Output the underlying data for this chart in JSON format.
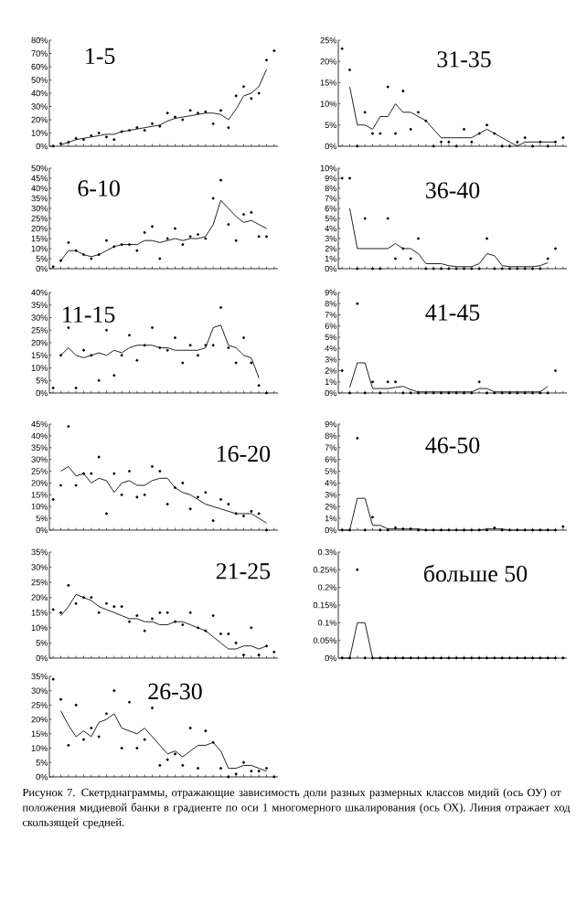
{
  "chart_data": [
    {
      "type": "scatter",
      "title": "1-5",
      "tick_labels": "y",
      "categories": [
        null,
        null,
        null,
        null,
        null,
        null,
        null,
        null,
        null,
        null,
        null,
        null,
        null,
        null,
        null,
        null,
        null,
        null,
        null,
        null,
        null,
        null,
        null,
        null,
        null,
        null,
        null,
        null,
        null,
        null
      ],
      "ylim": [
        0,
        80
      ],
      "yticks": [
        {
          "value": 0,
          "label": "0%"
        },
        {
          "value": 10,
          "label": "10%"
        },
        {
          "value": 20,
          "label": "20%"
        },
        {
          "value": 30,
          "label": "30%"
        },
        {
          "value": 40,
          "label": "40%"
        },
        {
          "value": 50,
          "label": "50%"
        },
        {
          "value": 60,
          "label": "60%"
        },
        {
          "value": 70,
          "label": "70%"
        },
        {
          "value": 80,
          "label": "80%"
        }
      ],
      "series": [
        {
          "type": "scatter",
          "marker": "circle",
          "color": "#000000",
          "values": [
            0,
            2,
            3,
            6,
            5,
            8,
            10,
            7,
            5,
            11,
            12,
            14,
            12,
            17,
            15,
            25,
            22,
            20,
            27,
            25,
            26,
            17,
            27,
            14,
            38,
            45,
            36,
            40,
            65,
            72
          ]
        },
        {
          "type": "line",
          "color": "#222222",
          "values": [
            null,
            1,
            3,
            5,
            6,
            7,
            8,
            9,
            9,
            11,
            12,
            13,
            14,
            15,
            16,
            19,
            21,
            22,
            23,
            24,
            25,
            25,
            24,
            20,
            28,
            38,
            40,
            45,
            58,
            null
          ]
        }
      ]
    },
    {
      "type": "scatter",
      "title": "6-10",
      "tick_labels": "y",
      "categories": [
        null,
        null,
        null,
        null,
        null,
        null,
        null,
        null,
        null,
        null,
        null,
        null,
        null,
        null,
        null,
        null,
        null,
        null,
        null,
        null,
        null,
        null,
        null,
        null,
        null,
        null,
        null,
        null,
        null,
        null
      ],
      "ylim": [
        0,
        50
      ],
      "yticks": [
        {
          "value": 0,
          "label": "0%"
        },
        {
          "value": 5,
          "label": "5%"
        },
        {
          "value": 10,
          "label": "10%"
        },
        {
          "value": 15,
          "label": "15%"
        },
        {
          "value": 20,
          "label": "20%"
        },
        {
          "value": 25,
          "label": "25%"
        },
        {
          "value": 30,
          "label": "30%"
        },
        {
          "value": 35,
          "label": "35%"
        },
        {
          "value": 40,
          "label": "40%"
        },
        {
          "value": 45,
          "label": "45%"
        },
        {
          "value": 50,
          "label": "50%"
        }
      ],
      "series": [
        {
          "type": "scatter",
          "marker": "circle",
          "color": "#000000",
          "values": [
            1,
            4,
            13,
            9,
            7,
            5,
            7,
            14,
            11,
            12,
            12,
            9,
            18,
            21,
            5,
            15,
            20,
            12,
            16,
            17,
            15,
            35,
            44,
            22,
            14,
            27,
            28,
            16,
            16,
            null
          ]
        },
        {
          "type": "line",
          "color": "#222222",
          "values": [
            null,
            4,
            9,
            9,
            7,
            6,
            7,
            9,
            11,
            12,
            12,
            12,
            14,
            14,
            13,
            14,
            15,
            14,
            15,
            15,
            16,
            22,
            34,
            30,
            26,
            23,
            24,
            22,
            20,
            null
          ]
        }
      ]
    },
    {
      "type": "scatter",
      "title": "11-15",
      "tick_labels": "y",
      "categories": [
        null,
        null,
        null,
        null,
        null,
        null,
        null,
        null,
        null,
        null,
        null,
        null,
        null,
        null,
        null,
        null,
        null,
        null,
        null,
        null,
        null,
        null,
        null,
        null,
        null,
        null,
        null,
        null,
        null,
        null
      ],
      "ylim": [
        0,
        40
      ],
      "yticks": [
        {
          "value": 0,
          "label": "0%"
        },
        {
          "value": 5,
          "label": "5%"
        },
        {
          "value": 10,
          "label": "10%"
        },
        {
          "value": 15,
          "label": "15%"
        },
        {
          "value": 20,
          "label": "20%"
        },
        {
          "value": 25,
          "label": "25%"
        },
        {
          "value": 30,
          "label": "30%"
        },
        {
          "value": 35,
          "label": "35%"
        },
        {
          "value": 40,
          "label": "40%"
        }
      ],
      "series": [
        {
          "type": "scatter",
          "marker": "circle",
          "color": "#000000",
          "values": [
            2,
            15,
            26,
            2,
            17,
            15,
            5,
            25,
            7,
            15,
            23,
            13,
            19,
            26,
            18,
            17,
            22,
            12,
            19,
            15,
            19,
            19,
            34,
            18,
            12,
            22,
            12,
            3,
            0,
            null
          ]
        },
        {
          "type": "line",
          "color": "#222222",
          "values": [
            null,
            15,
            18,
            15,
            14,
            15,
            16,
            15,
            17,
            16,
            18,
            19,
            19,
            19,
            18,
            18,
            17,
            17,
            17,
            17,
            18,
            26,
            27,
            19,
            18,
            15,
            14,
            6,
            null,
            null
          ]
        }
      ]
    },
    {
      "type": "scatter",
      "title": "16-20",
      "tick_labels": "y",
      "categories": [
        null,
        null,
        null,
        null,
        null,
        null,
        null,
        null,
        null,
        null,
        null,
        null,
        null,
        null,
        null,
        null,
        null,
        null,
        null,
        null,
        null,
        null,
        null,
        null,
        null,
        null,
        null,
        null,
        null,
        null
      ],
      "ylim": [
        0,
        45
      ],
      "yticks": [
        {
          "value": 0,
          "label": "0%"
        },
        {
          "value": 5,
          "label": "5%"
        },
        {
          "value": 10,
          "label": "10%"
        },
        {
          "value": 15,
          "label": "15%"
        },
        {
          "value": 20,
          "label": "20%"
        },
        {
          "value": 25,
          "label": "25%"
        },
        {
          "value": 30,
          "label": "30%"
        },
        {
          "value": 35,
          "label": "35%"
        },
        {
          "value": 40,
          "label": "40%"
        },
        {
          "value": 45,
          "label": "45%"
        }
      ],
      "series": [
        {
          "type": "scatter",
          "marker": "circle",
          "color": "#000000",
          "values": [
            13,
            19,
            44,
            19,
            24,
            24,
            31,
            7,
            24,
            15,
            25,
            14,
            15,
            27,
            25,
            11,
            18,
            20,
            9,
            14,
            16,
            4,
            13,
            11,
            7,
            6,
            8,
            7,
            0,
            null
          ]
        },
        {
          "type": "line",
          "color": "#222222",
          "values": [
            null,
            25,
            27,
            23,
            24,
            20,
            22,
            21,
            16,
            20,
            21,
            19,
            19,
            21,
            22,
            22,
            18,
            16,
            15,
            13,
            11,
            10,
            9,
            8,
            7,
            7,
            7,
            5,
            3,
            null
          ]
        }
      ]
    },
    {
      "type": "scatter",
      "title": "21-25",
      "tick_labels": "y",
      "categories": [
        null,
        null,
        null,
        null,
        null,
        null,
        null,
        null,
        null,
        null,
        null,
        null,
        null,
        null,
        null,
        null,
        null,
        null,
        null,
        null,
        null,
        null,
        null,
        null,
        null,
        null,
        null,
        null,
        null,
        null
      ],
      "ylim": [
        0,
        35
      ],
      "yticks": [
        {
          "value": 0,
          "label": "0%"
        },
        {
          "value": 5,
          "label": "5%"
        },
        {
          "value": 10,
          "label": "10%"
        },
        {
          "value": 15,
          "label": "15%"
        },
        {
          "value": 20,
          "label": "20%"
        },
        {
          "value": 25,
          "label": "25%"
        },
        {
          "value": 30,
          "label": "30%"
        },
        {
          "value": 35,
          "label": "35%"
        }
      ],
      "series": [
        {
          "type": "scatter",
          "marker": "circle",
          "color": "#000000",
          "values": [
            16,
            15,
            24,
            18,
            20,
            20,
            15,
            18,
            17,
            17,
            12,
            14,
            9,
            13,
            15,
            15,
            12,
            11,
            15,
            10,
            9,
            14,
            8,
            8,
            5,
            1,
            10,
            1,
            4,
            2
          ]
        },
        {
          "type": "line",
          "color": "#222222",
          "values": [
            null,
            14,
            17,
            21,
            20,
            19,
            17,
            16,
            15,
            14,
            13,
            13,
            12,
            12,
            11,
            11,
            12,
            12,
            11,
            10,
            9,
            7,
            5,
            3,
            3,
            4,
            4,
            3,
            4,
            null
          ]
        }
      ]
    },
    {
      "type": "scatter",
      "title": "26-30",
      "tick_labels": "y",
      "categories": [
        null,
        null,
        null,
        null,
        null,
        null,
        null,
        null,
        null,
        null,
        null,
        null,
        null,
        null,
        null,
        null,
        null,
        null,
        null,
        null,
        null,
        null,
        null,
        null,
        null,
        null,
        null,
        null,
        null,
        null
      ],
      "ylim": [
        0,
        35
      ],
      "yticks": [
        {
          "value": 0,
          "label": "0%"
        },
        {
          "value": 5,
          "label": "5%"
        },
        {
          "value": 10,
          "label": "10%"
        },
        {
          "value": 15,
          "label": "15%"
        },
        {
          "value": 20,
          "label": "20%"
        },
        {
          "value": 25,
          "label": "25%"
        },
        {
          "value": 30,
          "label": "30%"
        },
        {
          "value": 35,
          "label": "35%"
        }
      ],
      "series": [
        {
          "type": "scatter",
          "marker": "circle",
          "color": "#000000",
          "values": [
            34,
            27,
            11,
            25,
            13,
            17,
            14,
            22,
            30,
            10,
            26,
            10,
            13,
            24,
            4,
            6,
            8,
            4,
            17,
            3,
            16,
            12,
            3,
            0,
            1,
            5,
            2,
            2,
            3,
            0
          ]
        },
        {
          "type": "line",
          "color": "#222222",
          "values": [
            null,
            23,
            18,
            14,
            16,
            14,
            19,
            20,
            22,
            17,
            16,
            15,
            17,
            14,
            11,
            8,
            9,
            7,
            9,
            11,
            11,
            12,
            9,
            3,
            3,
            4,
            4,
            3,
            2,
            null
          ]
        }
      ]
    },
    {
      "type": "scatter",
      "title": "31-35",
      "tick_labels": "y",
      "categories": [
        null,
        null,
        null,
        null,
        null,
        null,
        null,
        null,
        null,
        null,
        null,
        null,
        null,
        null,
        null,
        null,
        null,
        null,
        null,
        null,
        null,
        null,
        null,
        null,
        null,
        null,
        null,
        null,
        null,
        null
      ],
      "ylim": [
        0,
        25
      ],
      "yticks": [
        {
          "value": 0,
          "label": "0%"
        },
        {
          "value": 5,
          "label": "5%"
        },
        {
          "value": 10,
          "label": "10%"
        },
        {
          "value": 15,
          "label": "15%"
        },
        {
          "value": 20,
          "label": "20%"
        },
        {
          "value": 25,
          "label": "25%"
        }
      ],
      "series": [
        {
          "type": "scatter",
          "marker": "circle",
          "color": "#000000",
          "values": [
            23,
            18,
            0,
            8,
            3,
            3,
            14,
            3,
            13,
            4,
            8,
            6,
            0,
            1,
            1,
            0,
            4,
            1,
            3,
            5,
            3,
            0,
            0,
            1,
            2,
            0,
            1,
            0,
            1,
            2
          ]
        },
        {
          "type": "line",
          "color": "#222222",
          "values": [
            null,
            14,
            5,
            5,
            4,
            7,
            7,
            10,
            8,
            8,
            7,
            6,
            4,
            2,
            2,
            2,
            2,
            2,
            3,
            4,
            3,
            2,
            1,
            0,
            1,
            1,
            1,
            1,
            1,
            null
          ]
        }
      ]
    },
    {
      "type": "scatter",
      "title": "36-40",
      "tick_labels": "y",
      "categories": [
        null,
        null,
        null,
        null,
        null,
        null,
        null,
        null,
        null,
        null,
        null,
        null,
        null,
        null,
        null,
        null,
        null,
        null,
        null,
        null,
        null,
        null,
        null,
        null,
        null,
        null,
        null,
        null,
        null,
        null
      ],
      "ylim": [
        0,
        10
      ],
      "yticks": [
        {
          "value": 0,
          "label": "0%"
        },
        {
          "value": 1,
          "label": "1%"
        },
        {
          "value": 2,
          "label": "2%"
        },
        {
          "value": 3,
          "label": "3%"
        },
        {
          "value": 4,
          "label": "4%"
        },
        {
          "value": 5,
          "label": "5%"
        },
        {
          "value": 6,
          "label": "6%"
        },
        {
          "value": 7,
          "label": "7%"
        },
        {
          "value": 8,
          "label": "8%"
        },
        {
          "value": 9,
          "label": "9%"
        },
        {
          "value": 10,
          "label": "10%"
        }
      ],
      "series": [
        {
          "type": "scatter",
          "marker": "circle",
          "color": "#000000",
          "values": [
            9,
            9,
            0,
            5,
            0,
            0,
            5,
            1,
            2,
            1,
            3,
            0,
            0,
            0,
            0,
            0,
            0,
            0,
            0,
            3,
            0,
            0,
            0,
            0,
            0,
            0,
            0,
            1,
            2,
            null
          ]
        },
        {
          "type": "line",
          "color": "#222222",
          "values": [
            null,
            6,
            2,
            2,
            2,
            2,
            2,
            2.5,
            2,
            2,
            1.5,
            0.5,
            0.5,
            0.5,
            0.3,
            0.2,
            0.2,
            0.2,
            0.5,
            1.5,
            1.3,
            0.3,
            0.2,
            0.2,
            0.2,
            0.2,
            0.3,
            0.6,
            null,
            null
          ]
        }
      ]
    },
    {
      "type": "scatter",
      "title": "41-45",
      "tick_labels": "y",
      "categories": [
        null,
        null,
        null,
        null,
        null,
        null,
        null,
        null,
        null,
        null,
        null,
        null,
        null,
        null,
        null,
        null,
        null,
        null,
        null,
        null,
        null,
        null,
        null,
        null,
        null,
        null,
        null,
        null,
        null,
        null
      ],
      "ylim": [
        0,
        9
      ],
      "yticks": [
        {
          "value": 0,
          "label": "0%"
        },
        {
          "value": 1,
          "label": "1%"
        },
        {
          "value": 2,
          "label": "2%"
        },
        {
          "value": 3,
          "label": "3%"
        },
        {
          "value": 4,
          "label": "4%"
        },
        {
          "value": 5,
          "label": "5%"
        },
        {
          "value": 6,
          "label": "6%"
        },
        {
          "value": 7,
          "label": "7%"
        },
        {
          "value": 8,
          "label": "8%"
        },
        {
          "value": 9,
          "label": "9%"
        }
      ],
      "series": [
        {
          "type": "scatter",
          "marker": "circle",
          "color": "#000000",
          "values": [
            2,
            0,
            8,
            0,
            1,
            0,
            1,
            1,
            0,
            0,
            0,
            0,
            0,
            0,
            0,
            0,
            0,
            0,
            1,
            0,
            0,
            0,
            0,
            0,
            0,
            0,
            0,
            0,
            2,
            null
          ]
        },
        {
          "type": "line",
          "color": "#222222",
          "values": [
            null,
            0.5,
            2.7,
            2.7,
            0.4,
            0.4,
            0.4,
            0.5,
            0.6,
            0.3,
            0.1,
            0.1,
            0.1,
            0.1,
            0.1,
            0.1,
            0.1,
            0.1,
            0.4,
            0.4,
            0.1,
            0.1,
            0.1,
            0.1,
            0.1,
            0.1,
            0.1,
            0.6,
            null,
            null
          ]
        }
      ]
    },
    {
      "type": "scatter",
      "title": "46-50",
      "tick_labels": "y",
      "categories": [
        null,
        null,
        null,
        null,
        null,
        null,
        null,
        null,
        null,
        null,
        null,
        null,
        null,
        null,
        null,
        null,
        null,
        null,
        null,
        null,
        null,
        null,
        null,
        null,
        null,
        null,
        null,
        null,
        null,
        null
      ],
      "ylim": [
        0,
        9
      ],
      "yticks": [
        {
          "value": 0,
          "label": "0%"
        },
        {
          "value": 1,
          "label": "1%"
        },
        {
          "value": 2,
          "label": "2%"
        },
        {
          "value": 3,
          "label": "3%"
        },
        {
          "value": 4,
          "label": "4%"
        },
        {
          "value": 5,
          "label": "5%"
        },
        {
          "value": 6,
          "label": "6%"
        },
        {
          "value": 7,
          "label": "7%"
        },
        {
          "value": 8,
          "label": "8%"
        },
        {
          "value": 9,
          "label": "9%"
        }
      ],
      "series": [
        {
          "type": "scatter",
          "marker": "circle",
          "color": "#000000",
          "values": [
            0,
            0,
            7.8,
            0,
            1.1,
            0,
            0,
            0.2,
            0.1,
            0.1,
            0,
            0,
            0,
            0,
            0,
            0,
            0,
            0,
            0,
            0,
            0.2,
            0,
            0,
            0,
            0,
            0,
            0,
            0,
            0,
            0.3
          ]
        },
        {
          "type": "line",
          "color": "#222222",
          "values": [
            0,
            0,
            2.7,
            2.7,
            0.4,
            0.4,
            0.1,
            0.1,
            0.1,
            0.1,
            0.1,
            0,
            0,
            0,
            0,
            0,
            0,
            0,
            0,
            0.1,
            0.1,
            0.1,
            0,
            0,
            0,
            0,
            0,
            0,
            0,
            null
          ]
        }
      ]
    },
    {
      "type": "scatter",
      "title": "больше 50",
      "tick_labels": "y",
      "categories": [
        null,
        null,
        null,
        null,
        null,
        null,
        null,
        null,
        null,
        null,
        null,
        null,
        null,
        null,
        null,
        null,
        null,
        null,
        null,
        null,
        null,
        null,
        null,
        null,
        null,
        null,
        null,
        null,
        null,
        null
      ],
      "ylim": [
        0,
        0.3
      ],
      "yticks": [
        {
          "value": 0,
          "label": "0%"
        },
        {
          "value": 0.05,
          "label": "0.05%"
        },
        {
          "value": 0.1,
          "label": "0.1%"
        },
        {
          "value": 0.15,
          "label": "0.15%"
        },
        {
          "value": 0.2,
          "label": "0.2%"
        },
        {
          "value": 0.25,
          "label": "0.25%"
        },
        {
          "value": 0.3,
          "label": "0.3%"
        }
      ],
      "annotations": [
        "Рисунок 7. Скетрдиаграммы, отражающие зависимость доли разных размерных классов мидий (ось ОУ) от положения мидиевой банки в градиенте по оси 1 многомерного шкалирования (ось ОХ). Линия отражает ход скользящей средней."
      ],
      "series": [
        {
          "type": "scatter",
          "marker": "circle",
          "color": "#000000",
          "values": [
            0,
            0,
            0.25,
            0,
            0,
            0,
            0,
            0,
            0,
            0,
            0,
            0,
            0,
            0,
            0,
            0,
            0,
            0,
            0,
            0,
            0,
            0,
            0,
            0,
            0,
            0,
            0,
            0,
            0,
            0
          ]
        },
        {
          "type": "line",
          "color": "#222222",
          "values": [
            0,
            0,
            0.1,
            0.1,
            0,
            0,
            0,
            0,
            0,
            0,
            0,
            0,
            0,
            0,
            0,
            0,
            0,
            0,
            0,
            0,
            0,
            0,
            0,
            0,
            0,
            0,
            0,
            0,
            0,
            null
          ]
        }
      ]
    }
  ]
}
